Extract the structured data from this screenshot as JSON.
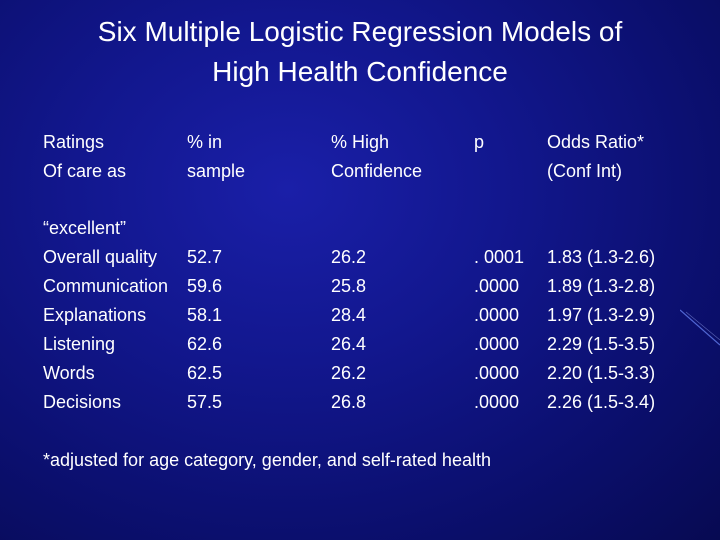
{
  "slide": {
    "title_line1": "Six Multiple Logistic Regression Models of",
    "title_line2": "High Health Confidence",
    "headers": {
      "col1": [
        "Ratings",
        "Of care as"
      ],
      "col2": [
        "% in",
        "sample"
      ],
      "col3": [
        "% High",
        "Confidence"
      ],
      "col4": [
        "p",
        ""
      ],
      "col5": [
        "Odds Ratio*",
        "(Conf Int)"
      ]
    },
    "group_label": "“excellent”",
    "rows": [
      {
        "rating": "Overall quality",
        "sample": "52.7",
        "high": "26.2",
        "p": ". 0001",
        "or": "1.83 (1.3-2.6)"
      },
      {
        "rating": "Communication",
        "sample": "59.6",
        "high": "25.8",
        "p": ".0000",
        "or": "1.89 (1.3-2.8)"
      },
      {
        "rating": "Explanations",
        "sample": "58.1",
        "high": "28.4",
        "p": ".0000",
        "or": "1.97 (1.3-2.9)"
      },
      {
        "rating": "Listening",
        "sample": "62.6",
        "high": "26.4",
        "p": ".0000",
        "or": "2.29 (1.5-3.5)"
      },
      {
        "rating": "Words",
        "sample": "62.5",
        "high": "26.2",
        "p": ".0000",
        "or": "2.20 (1.5-3.3)"
      },
      {
        "rating": "Decisions",
        "sample": "57.5",
        "high": "26.8",
        "p": ".0000",
        "or": "2.26 (1.5-3.4)"
      }
    ],
    "footnote": "*adjusted for age category, gender, and self-rated health"
  }
}
